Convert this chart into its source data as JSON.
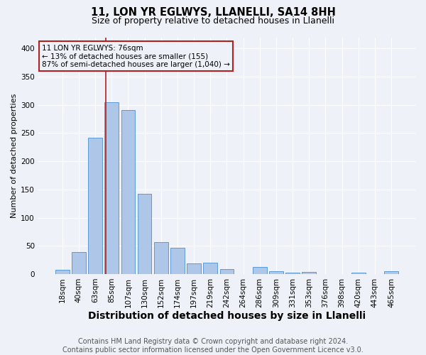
{
  "title_line1": "11, LON YR EGLWYS, LLANELLI, SA14 8HH",
  "title_line2": "Size of property relative to detached houses in Llanelli",
  "xlabel": "Distribution of detached houses by size in Llanelli",
  "ylabel": "Number of detached properties",
  "footer": "Contains HM Land Registry data © Crown copyright and database right 2024.\nContains public sector information licensed under the Open Government Licence v3.0.",
  "categories": [
    "18sqm",
    "40sqm",
    "63sqm",
    "85sqm",
    "107sqm",
    "130sqm",
    "152sqm",
    "174sqm",
    "197sqm",
    "219sqm",
    "242sqm",
    "264sqm",
    "286sqm",
    "309sqm",
    "331sqm",
    "353sqm",
    "376sqm",
    "398sqm",
    "420sqm",
    "443sqm",
    "465sqm"
  ],
  "values": [
    8,
    39,
    242,
    305,
    291,
    142,
    56,
    46,
    19,
    20,
    9,
    0,
    12,
    5,
    3,
    4,
    0,
    0,
    3,
    0,
    5
  ],
  "bar_color": "#aec6e8",
  "bar_edge_color": "#5b9bd5",
  "property_line_color": "#b22222",
  "property_line_x": 2.65,
  "annotation_line1": "11 LON YR EGLWYS: 76sqm",
  "annotation_line2": "← 13% of detached houses are smaller (155)",
  "annotation_line3": "87% of semi-detached houses are larger (1,040) →",
  "annotation_border_color": "#b22222",
  "ylim_max": 420,
  "yticks": [
    0,
    50,
    100,
    150,
    200,
    250,
    300,
    350,
    400
  ],
  "bg_color": "#eef2f8",
  "grid_color": "#ffffff",
  "title1_fontsize": 10.5,
  "title2_fontsize": 9,
  "xlabel_fontsize": 10,
  "ylabel_fontsize": 8,
  "tick_fontsize": 7.5,
  "ann_fontsize": 7.5,
  "footer_fontsize": 7
}
